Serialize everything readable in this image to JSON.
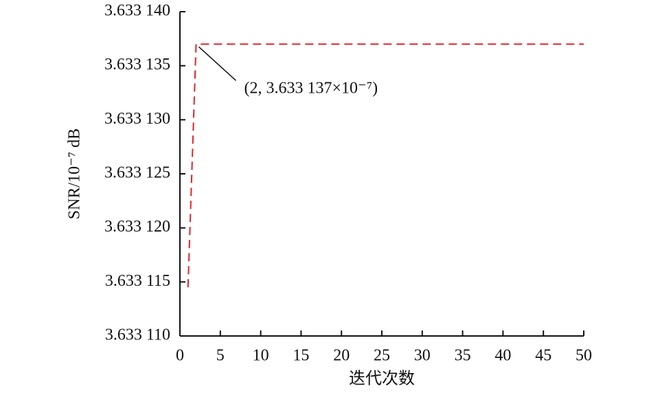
{
  "chart_data": {
    "type": "line",
    "x_label": "迭代次数",
    "y_label": "SNR/10⁻⁷ dB",
    "x": [
      1,
      2,
      50
    ],
    "series": [
      {
        "name": "SNR",
        "color": "#e0232b",
        "values": [
          3.6331145,
          3.633137,
          3.633137
        ]
      }
    ],
    "xlim": [
      0,
      50
    ],
    "xticks": [
      0,
      5,
      10,
      15,
      20,
      25,
      30,
      35,
      40,
      45,
      50
    ],
    "ylim": [
      3.63311,
      3.63314
    ],
    "yticks": [
      {
        "value": 3.63311,
        "label": "3.633 110"
      },
      {
        "value": 3.633115,
        "label": "3.633 115"
      },
      {
        "value": 3.63312,
        "label": "3.633 120"
      },
      {
        "value": 3.633125,
        "label": "3.633 125"
      },
      {
        "value": 3.63313,
        "label": "3.633 130"
      },
      {
        "value": 3.633135,
        "label": "3.633 135"
      },
      {
        "value": 3.63314,
        "label": "3.633 140"
      }
    ],
    "annotation": {
      "text": "(2, 3.633 137×10⁻⁷)",
      "x": 2,
      "y": 3.633137
    }
  }
}
